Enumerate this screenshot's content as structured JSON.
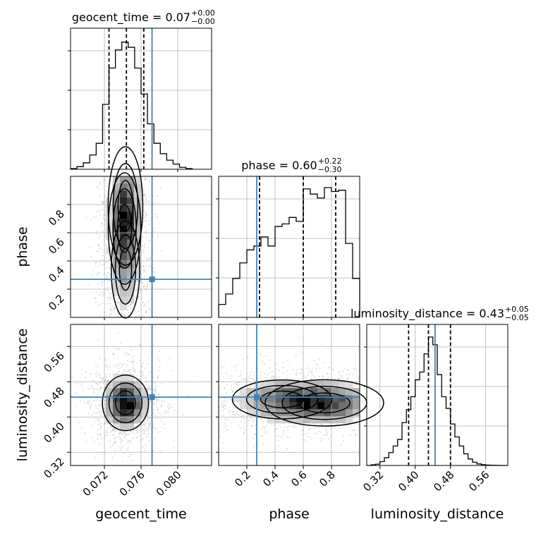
{
  "chart_data": {
    "type": "corner",
    "parameters": [
      "geocent_time",
      "phase",
      "luminosity_distance"
    ],
    "titles": [
      {
        "name": "geocent_time",
        "median": "0.07",
        "plus": "+0.00",
        "minus": "−0.00"
      },
      {
        "name": "phase",
        "median": "0.60",
        "plus": "+0.22",
        "minus": "−0.30"
      },
      {
        "name": "luminosity_distance",
        "median": "0.43",
        "plus": "+0.05",
        "minus": "−0.05"
      }
    ],
    "axes": {
      "geocent_time": {
        "label": "geocent_time",
        "range": [
          0.0683,
          0.0837
        ],
        "ticks": [
          0.072,
          0.076,
          0.08
        ],
        "tick_labels": [
          "0.072",
          "0.076",
          "0.080"
        ]
      },
      "phase": {
        "label": "phase",
        "range": [
          0.0,
          1.0
        ],
        "ticks": [
          0.2,
          0.4,
          0.6,
          0.8
        ],
        "tick_labels": [
          "0.2",
          "0.4",
          "0.6",
          "0.8"
        ]
      },
      "luminosity_distance": {
        "label": "luminosity_distance",
        "range": [
          0.29,
          0.61
        ],
        "ticks": [
          0.32,
          0.4,
          0.48,
          0.56
        ],
        "tick_labels": [
          "0.32",
          "0.40",
          "0.48",
          "0.56"
        ]
      }
    },
    "truths": {
      "geocent_time": 0.0772,
      "phase": 0.27,
      "luminosity_distance": 0.445
    },
    "truth_color": "#4682b4",
    "quantiles": {
      "geocent_time": [
        0.0725,
        0.0744,
        0.0763
      ],
      "phase": [
        0.29,
        0.6,
        0.83
      ],
      "luminosity_distance": [
        0.385,
        0.43,
        0.48
      ]
    },
    "histograms": {
      "geocent_time": {
        "edges": [
          0.0683,
          0.069,
          0.0697,
          0.0704,
          0.0711,
          0.0718,
          0.0725,
          0.0732,
          0.0739,
          0.0746,
          0.0753,
          0.076,
          0.0767,
          0.0774,
          0.0781,
          0.0788,
          0.0795,
          0.0802,
          0.0809,
          0.0816
        ],
        "counts": [
          0.005,
          0.02,
          0.05,
          0.11,
          0.2,
          0.5,
          0.78,
          0.92,
          0.98,
          0.94,
          0.78,
          0.58,
          0.35,
          0.2,
          0.12,
          0.07,
          0.04,
          0.015,
          0.005
        ]
      },
      "phase": {
        "edges": [
          0.0,
          0.05,
          0.1,
          0.15,
          0.2,
          0.25,
          0.3,
          0.35,
          0.4,
          0.45,
          0.5,
          0.55,
          0.6,
          0.65,
          0.7,
          0.75,
          0.8,
          0.85,
          0.9,
          0.95,
          1.0
        ],
        "counts": [
          0.1,
          0.18,
          0.3,
          0.42,
          0.52,
          0.55,
          0.62,
          0.55,
          0.7,
          0.72,
          0.77,
          0.74,
          0.99,
          0.95,
          0.92,
          1.0,
          0.97,
          0.98,
          0.57,
          0.3
        ]
      },
      "luminosity_distance": {
        "edges": [
          0.29,
          0.3,
          0.31,
          0.32,
          0.33,
          0.34,
          0.35,
          0.36,
          0.37,
          0.38,
          0.39,
          0.4,
          0.41,
          0.42,
          0.43,
          0.44,
          0.45,
          0.46,
          0.47,
          0.48,
          0.49,
          0.5,
          0.51,
          0.52,
          0.53,
          0.54,
          0.55,
          0.56,
          0.57,
          0.58,
          0.59,
          0.6,
          0.61
        ],
        "counts": [
          0.0,
          0.005,
          0.01,
          0.03,
          0.06,
          0.1,
          0.15,
          0.2,
          0.33,
          0.43,
          0.53,
          0.66,
          0.72,
          0.86,
          0.99,
          0.93,
          0.7,
          0.53,
          0.44,
          0.32,
          0.22,
          0.15,
          0.09,
          0.05,
          0.025,
          0.012,
          0.006,
          0.003,
          0.002,
          0.001,
          0.0,
          0.0
        ]
      }
    },
    "joint_modes": {
      "phase_vs_geocent_time": [
        {
          "x": 0.0743,
          "y": 0.79,
          "weight": 1.0
        },
        {
          "x": 0.0742,
          "y": 0.63,
          "weight": 0.85
        },
        {
          "x": 0.0743,
          "y": 0.34,
          "weight": 0.55
        }
      ],
      "luminosity_distance_vs_geocent_time": [
        {
          "x": 0.0743,
          "y": 0.432,
          "weight": 1.0
        }
      ],
      "luminosity_distance_vs_phase": [
        {
          "x": 0.75,
          "y": 0.432,
          "weight": 1.0
        },
        {
          "x": 0.45,
          "y": 0.44,
          "weight": 0.6
        }
      ]
    },
    "grid": true,
    "legend": "none"
  }
}
